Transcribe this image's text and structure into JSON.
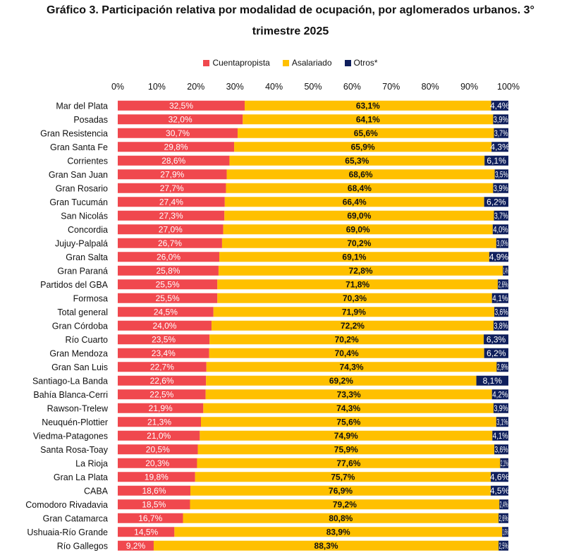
{
  "chart_data": {
    "type": "bar",
    "orientation": "horizontal",
    "stacked": true,
    "title_line1": "Gráfico 3. Participación relativa por modalidad de ocupación, por aglomerados urbanos. 3°",
    "title_line2": "trimestre 2025",
    "xlabel": "",
    "ylabel": "",
    "xlim": [
      0,
      100
    ],
    "xticks": [
      "0%",
      "10%",
      "20%",
      "30%",
      "40%",
      "50%",
      "60%",
      "70%",
      "80%",
      "90%",
      "100%"
    ],
    "legend_position": "top-center",
    "categories": [
      "Mar del Plata",
      "Posadas",
      "Gran Resistencia",
      "Gran Santa Fe",
      "Corrientes",
      "Gran San Juan",
      "Gran Rosario",
      "Gran Tucumán",
      "San Nicolás",
      "Concordia",
      "Jujuy-Palpalá",
      "Gran Salta",
      "Gran Paraná",
      "Partidos del GBA",
      "Formosa",
      "Total general",
      "Gran Córdoba",
      "Río Cuarto",
      "Gran Mendoza",
      "Gran San Luis",
      "Santiago-La Banda",
      "Bahía Blanca-Cerri",
      "Rawson-Trelew",
      "Neuquén-Plottier",
      "Viedma-Patagones",
      "Santa Rosa-Toay",
      "La Rioja",
      "Gran La Plata",
      "CABA",
      "Comodoro Rivadavia",
      "Gran Catamarca",
      "Ushuaia-Río Grande",
      "Río Gallegos"
    ],
    "series": [
      {
        "name": "Cuentapropista",
        "color": "#f0484e",
        "values": [
          32.5,
          32.0,
          30.7,
          29.8,
          28.6,
          27.9,
          27.7,
          27.4,
          27.3,
          27.0,
          26.7,
          26.0,
          25.8,
          25.5,
          25.5,
          24.5,
          24.0,
          23.5,
          23.4,
          22.7,
          22.6,
          22.5,
          21.9,
          21.3,
          21.0,
          20.5,
          20.3,
          19.8,
          18.6,
          18.5,
          16.7,
          14.5,
          9.2
        ],
        "labels": [
          "32,5%",
          "32,0%",
          "30,7%",
          "29,8%",
          "28,6%",
          "27,9%",
          "27,7%",
          "27,4%",
          "27,3%",
          "27,0%",
          "26,7%",
          "26,0%",
          "25,8%",
          "25,5%",
          "25,5%",
          "24,5%",
          "24,0%",
          "23,5%",
          "23,4%",
          "22,7%",
          "22,6%",
          "22,5%",
          "21,9%",
          "21,3%",
          "21,0%",
          "20,5%",
          "20,3%",
          "19,8%",
          "18,6%",
          "18,5%",
          "16,7%",
          "14,5%",
          "9,2%"
        ]
      },
      {
        "name": "Asalariado",
        "color": "#ffc000",
        "values": [
          63.1,
          64.1,
          65.6,
          65.9,
          65.3,
          68.6,
          68.4,
          66.4,
          69.0,
          69.0,
          70.2,
          69.1,
          72.8,
          71.8,
          70.3,
          71.9,
          72.2,
          70.2,
          70.4,
          74.3,
          69.2,
          73.3,
          74.3,
          75.6,
          74.9,
          75.9,
          77.6,
          75.7,
          76.9,
          79.2,
          80.8,
          83.9,
          88.3
        ],
        "labels": [
          "63,1%",
          "64,1%",
          "65,6%",
          "65,9%",
          "65,3%",
          "68,6%",
          "68,4%",
          "66,4%",
          "69,0%",
          "69,0%",
          "70,2%",
          "69,1%",
          "72,8%",
          "71,8%",
          "70,3%",
          "71,9%",
          "72,2%",
          "70,2%",
          "70,4%",
          "74,3%",
          "69,2%",
          "73,3%",
          "74,3%",
          "75,6%",
          "74,9%",
          "75,9%",
          "77,6%",
          "75,7%",
          "76,9%",
          "79,2%",
          "80,8%",
          "83,9%",
          "88,3%"
        ]
      },
      {
        "name": "Otros*",
        "color": "#0f1f5c",
        "values": [
          4.4,
          3.9,
          3.7,
          4.3,
          6.1,
          3.5,
          3.9,
          6.2,
          3.7,
          4.0,
          3.0,
          4.9,
          1.4,
          2.6,
          4.1,
          3.6,
          3.8,
          6.3,
          6.2,
          2.9,
          8.1,
          4.2,
          3.9,
          3.1,
          4.1,
          3.6,
          2.1,
          4.6,
          4.5,
          2.4,
          2.6,
          1.6,
          2.5
        ],
        "labels": [
          "4,4%",
          "3,9%",
          "3,7%",
          "4,3%",
          "6,1%",
          "3,5%",
          "3,9%",
          "6,2%",
          "3,7%",
          "4,0%",
          "3,0%",
          "4,9%",
          "1,4%",
          "2,6%",
          "4,1%",
          "3,6%",
          "3,8%",
          "6,3%",
          "6,2%",
          "2,9%",
          "8,1%",
          "4,2%",
          "3,9%",
          "3,1%",
          "4,1%",
          "3,6%",
          "2,1%",
          "4,6%",
          "4,5%",
          "2,4%",
          "2,6%",
          "1,6%",
          "2,5%"
        ]
      }
    ]
  }
}
